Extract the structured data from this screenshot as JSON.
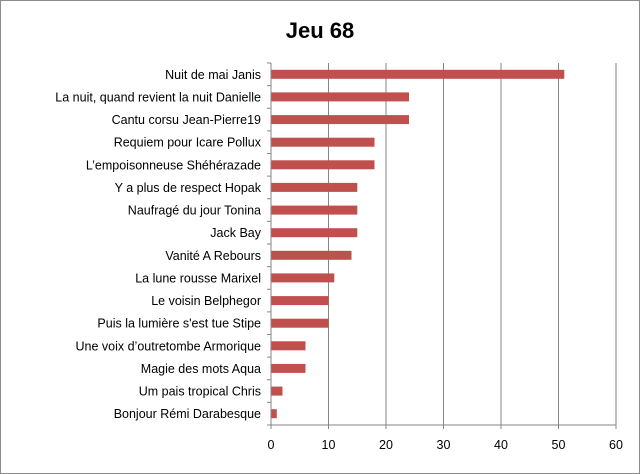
{
  "chart_data": {
    "type": "bar",
    "orientation": "horizontal",
    "title": "Jeu 68",
    "categories": [
      "Nuit de mai Janis",
      "La nuit, quand revient la nuit Danielle",
      "Cantu corsu Jean-Pierre19",
      "Requiem pour Icare Pollux",
      "L’empoisonneuse Shéhérazade",
      "Y a plus de respect Hopak",
      "Naufragé  du jour  Tonina",
      "Jack Bay",
      "Vanité A Rebours",
      "La lune rousse Marixel",
      "Le voisin Belphegor",
      "Puis la lumière s'est tue Stipe",
      "Une voix d’outretombe Armorique",
      "Magie des mots Aqua",
      "Um  pais tropical Chris",
      "Bonjour Rémi Darabesque"
    ],
    "values": [
      51,
      24,
      24,
      18,
      18,
      15,
      15,
      15,
      14,
      11,
      10,
      10,
      6,
      6,
      2,
      1
    ],
    "xlim": [
      0,
      60
    ],
    "xticks": [
      0,
      10,
      20,
      30,
      40,
      50,
      60
    ],
    "grid": true,
    "legend": "none",
    "bar_color": "#c0504d",
    "grid_color": "#868686"
  }
}
